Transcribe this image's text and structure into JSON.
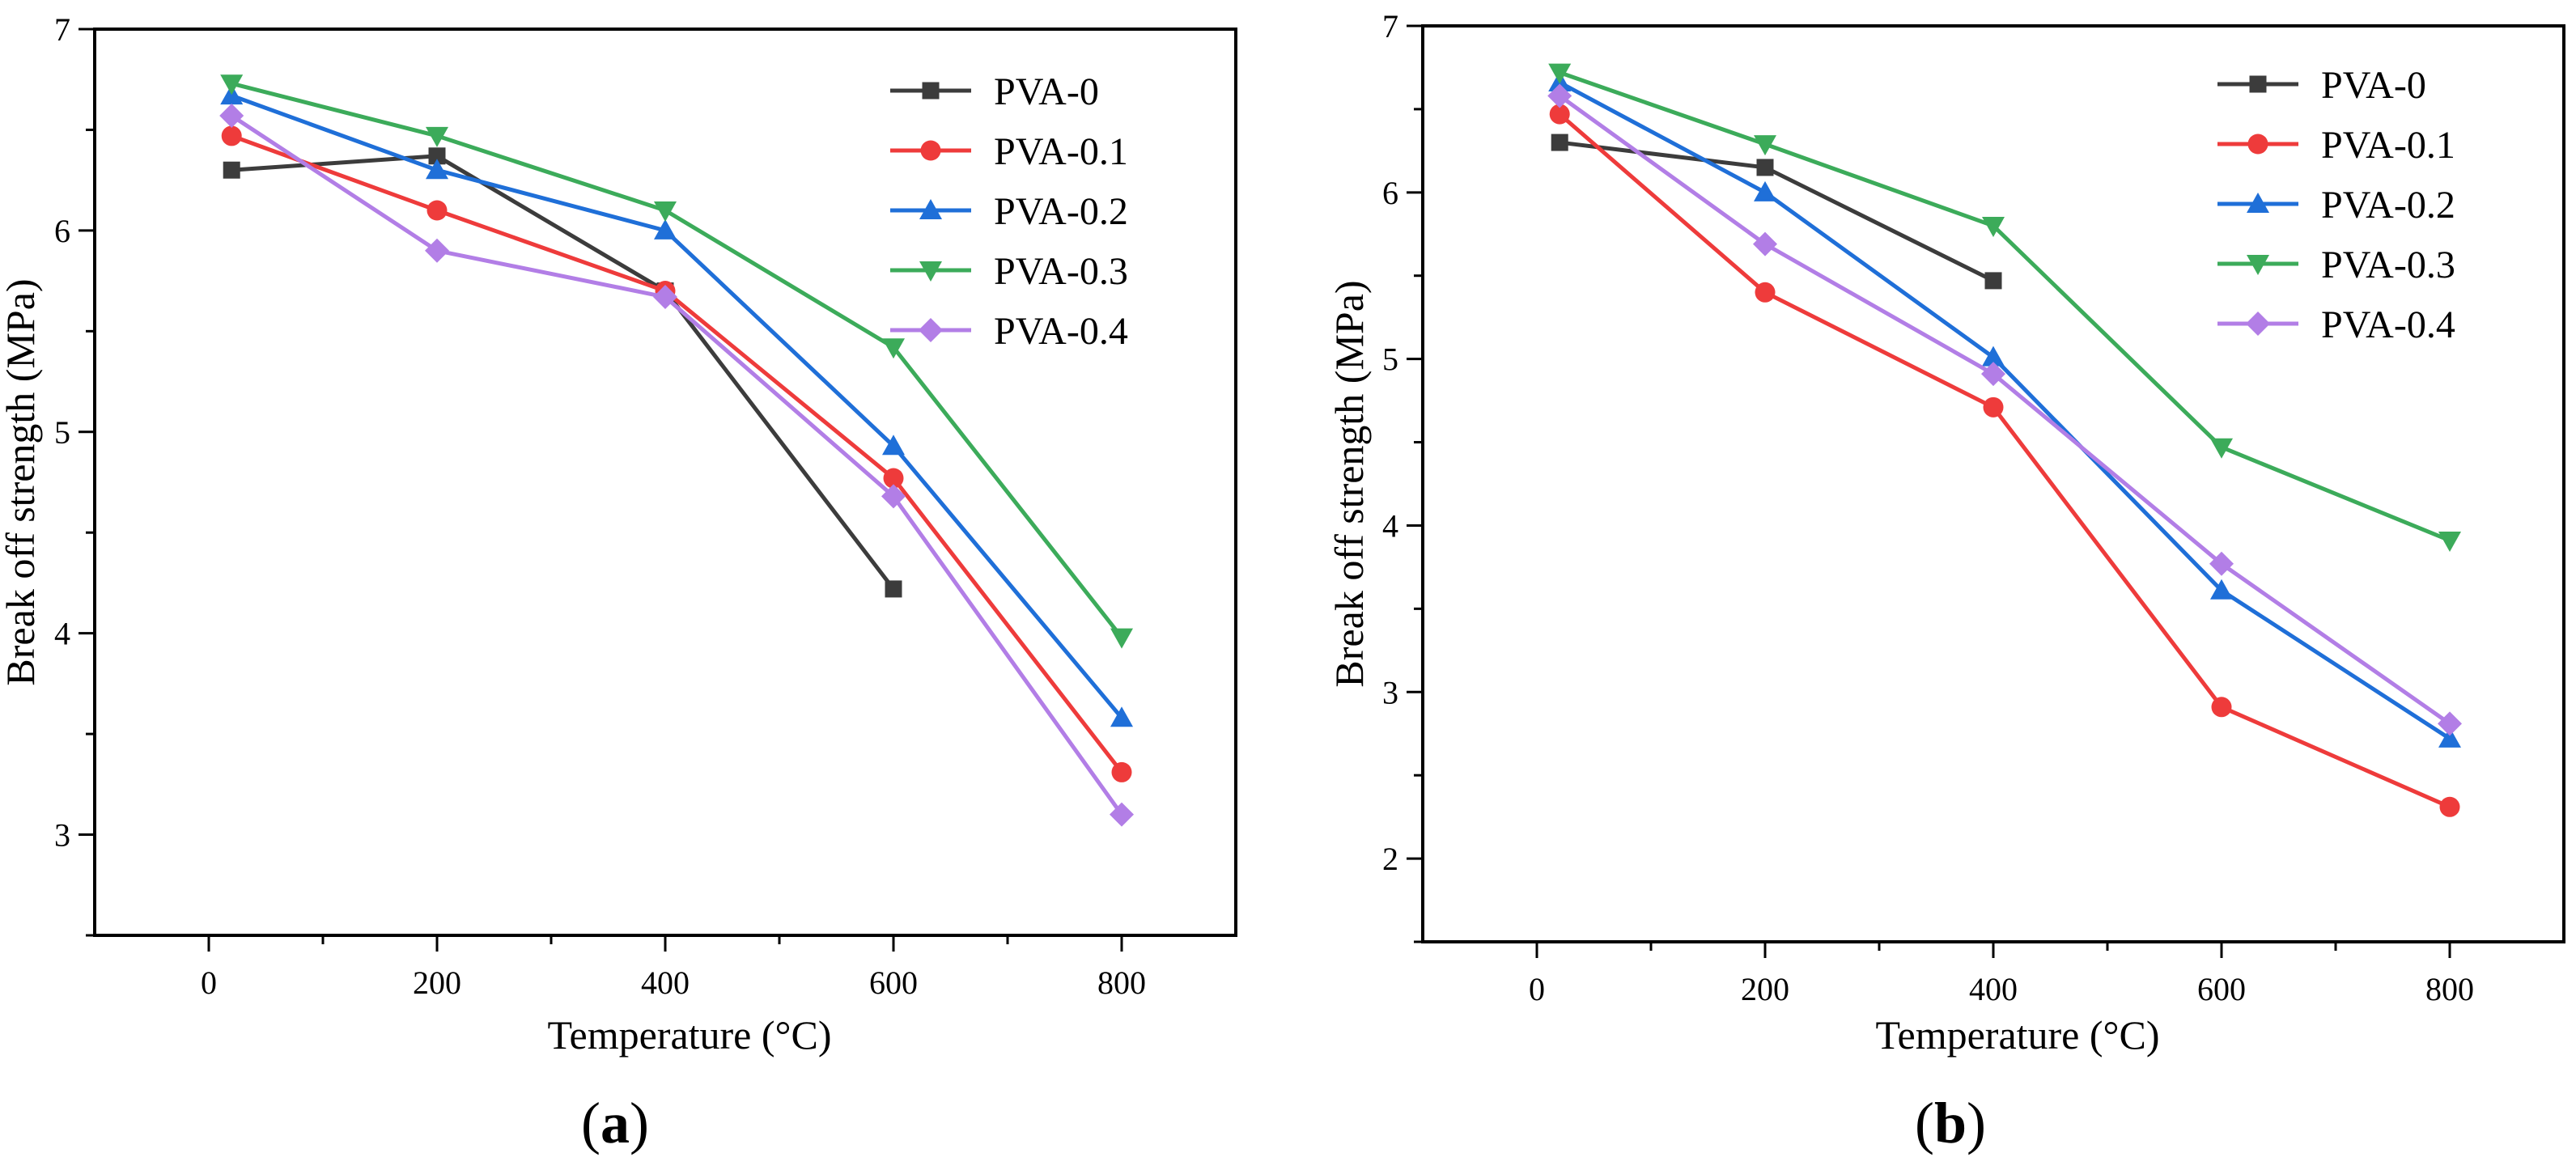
{
  "chart_data": [
    {
      "type": "line",
      "panel_label": "(a)",
      "panel_open": "(",
      "panel_letter": "a",
      "panel_close": ")",
      "title": "",
      "xlabel": "Temperature (°C)",
      "ylabel": "Break off strength (MPa)",
      "xlim": [
        -100,
        900
      ],
      "ylim": [
        2.5,
        7
      ],
      "xticks": [
        0,
        200,
        400,
        600,
        800
      ],
      "yticks": [
        3,
        4,
        5,
        6,
        7
      ],
      "grid": false,
      "legend_position": "top-right",
      "series": [
        {
          "name": "PVA-0",
          "color": "#3c3c3c",
          "marker": "square",
          "x": [
            20,
            200,
            400,
            600
          ],
          "y": [
            6.3,
            6.37,
            5.7,
            4.22
          ]
        },
        {
          "name": "PVA-0.1",
          "color": "#ee3b3b",
          "marker": "circle",
          "x": [
            20,
            200,
            400,
            600,
            800
          ],
          "y": [
            6.47,
            6.1,
            5.7,
            4.77,
            3.31
          ]
        },
        {
          "name": "PVA-0.2",
          "color": "#1f6fd8",
          "marker": "triangle-up",
          "x": [
            20,
            200,
            400,
            600,
            800
          ],
          "y": [
            6.67,
            6.3,
            6.0,
            4.93,
            3.58
          ]
        },
        {
          "name": "PVA-0.3",
          "color": "#3cab5a",
          "marker": "triangle-down",
          "x": [
            20,
            200,
            400,
            600,
            800
          ],
          "y": [
            6.73,
            6.47,
            6.1,
            5.42,
            3.98
          ]
        },
        {
          "name": "PVA-0.4",
          "color": "#b27ee6",
          "marker": "diamond",
          "x": [
            20,
            200,
            400,
            600,
            800
          ],
          "y": [
            6.57,
            5.9,
            5.67,
            4.68,
            3.1
          ]
        }
      ]
    },
    {
      "type": "line",
      "panel_label": "(b)",
      "panel_open": "(",
      "panel_letter": "b",
      "panel_close": ")",
      "title": "",
      "xlabel": "Temperature (°C)",
      "ylabel": "Break off strength (MPa)",
      "xlim": [
        -100,
        900
      ],
      "ylim": [
        1.5,
        7
      ],
      "xticks": [
        0,
        200,
        400,
        600,
        800
      ],
      "yticks": [
        2,
        3,
        4,
        5,
        6,
        7
      ],
      "grid": false,
      "legend_position": "top-right",
      "series": [
        {
          "name": "PVA-0",
          "color": "#3c3c3c",
          "marker": "square",
          "x": [
            20,
            200,
            400
          ],
          "y": [
            6.3,
            6.15,
            5.47
          ]
        },
        {
          "name": "PVA-0.1",
          "color": "#ee3b3b",
          "marker": "circle",
          "x": [
            20,
            200,
            400,
            600,
            800
          ],
          "y": [
            6.47,
            5.4,
            4.71,
            2.91,
            2.31
          ]
        },
        {
          "name": "PVA-0.2",
          "color": "#1f6fd8",
          "marker": "triangle-up",
          "x": [
            20,
            200,
            400,
            600,
            800
          ],
          "y": [
            6.66,
            6.0,
            5.01,
            3.61,
            2.72
          ]
        },
        {
          "name": "PVA-0.3",
          "color": "#3cab5a",
          "marker": "triangle-down",
          "x": [
            20,
            200,
            400,
            600,
            800
          ],
          "y": [
            6.72,
            6.29,
            5.8,
            4.47,
            3.91
          ]
        },
        {
          "name": "PVA-0.4",
          "color": "#b27ee6",
          "marker": "diamond",
          "x": [
            20,
            200,
            400,
            600,
            800
          ],
          "y": [
            6.58,
            5.69,
            4.91,
            3.77,
            2.81
          ]
        }
      ]
    }
  ]
}
